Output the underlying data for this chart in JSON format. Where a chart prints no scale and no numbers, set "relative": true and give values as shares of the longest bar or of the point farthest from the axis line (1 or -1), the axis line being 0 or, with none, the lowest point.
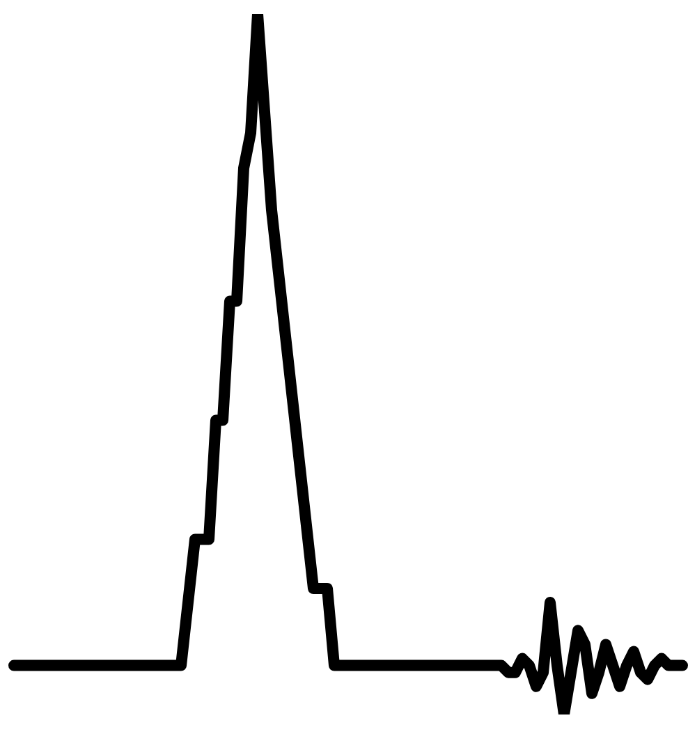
{
  "chart_data": {
    "type": "line",
    "relative": true,
    "marker": "none",
    "legend": false,
    "categories": [
      null,
      null,
      null,
      null,
      null,
      null,
      null,
      null,
      null,
      null,
      null,
      null,
      null,
      null,
      null,
      null,
      null,
      null,
      null,
      null,
      null,
      null,
      null,
      null,
      null,
      null,
      null,
      null,
      null,
      null,
      null,
      null,
      null,
      null,
      null,
      null,
      null,
      null,
      null,
      null,
      null,
      null,
      null,
      null,
      null,
      null,
      null,
      null,
      null,
      null,
      null,
      null,
      null,
      null,
      null,
      null,
      null,
      null,
      null,
      null,
      null,
      null,
      null,
      null,
      null,
      null,
      null,
      null,
      null,
      null,
      null,
      null,
      null,
      null,
      null,
      null,
      null,
      null,
      null,
      null,
      null,
      null,
      null,
      null,
      null,
      null,
      null,
      null,
      null,
      null,
      null,
      null,
      null,
      null,
      null,
      null,
      null
    ],
    "color": "#000000",
    "values": [
      0.07,
      0.07,
      0.07,
      0.07,
      0.07,
      0.07,
      0.07,
      0.07,
      0.07,
      0.07,
      0.07,
      0.07,
      0.07,
      0.07,
      0.07,
      0.07,
      0.07,
      0.07,
      0.07,
      0.07,
      0.07,
      0.07,
      0.07,
      0.07,
      0.07,
      0.16,
      0.25,
      0.25,
      0.25,
      0.42,
      0.42,
      0.59,
      0.59,
      0.78,
      0.83,
      1,
      0.86,
      0.72,
      0.63,
      0.54,
      0.45,
      0.36,
      0.27,
      0.18,
      0.18,
      0.18,
      0.07,
      0.07,
      0.07,
      0.07,
      0.07,
      0.07,
      0.07,
      0.07,
      0.07,
      0.07,
      0.07,
      0.07,
      0.07,
      0.07,
      0.07,
      0.07,
      0.07,
      0.07,
      0.07,
      0.07,
      0.07,
      0.07,
      0.07,
      0.07,
      0.07,
      0.06,
      0.06,
      0.08,
      0.07,
      0.04,
      0.06,
      0.16,
      0.07,
      0,
      0.06,
      0.12,
      0.1,
      0.03,
      0.06,
      0.1,
      0.07,
      0.04,
      0.07,
      0.09,
      0.06,
      0.05,
      0.07,
      0.08,
      0.07,
      0.07,
      0.07
    ]
  }
}
